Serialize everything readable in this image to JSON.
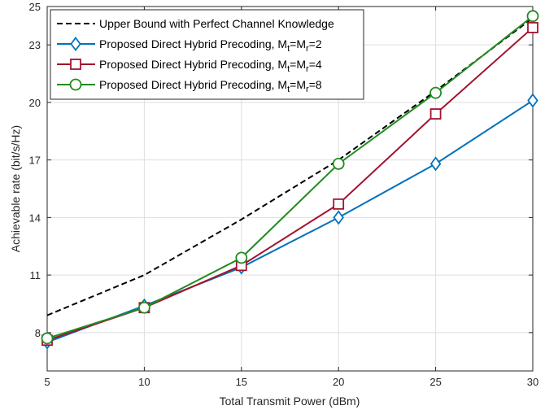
{
  "chart_data": {
    "type": "line",
    "xlabel": "Total Transmit Power (dBm)",
    "ylabel": "Achievable rate (bit/s/Hz)",
    "xlim": [
      5,
      30
    ],
    "ylim": [
      6,
      25
    ],
    "xticks": [
      5,
      10,
      15,
      20,
      25,
      30
    ],
    "yticks": [
      8,
      11,
      14,
      17,
      20,
      23,
      25
    ],
    "grid": true,
    "legend_position": "top-left",
    "x": [
      5,
      10,
      15,
      20,
      25,
      30
    ],
    "series": [
      {
        "name": "Upper Bound with Perfect Channel Knowledge",
        "values": [
          8.9,
          11.0,
          13.9,
          17.0,
          20.6,
          24.4
        ],
        "color": "#000000",
        "style": "dashed",
        "marker": "none"
      },
      {
        "name_main": "Proposed Direct Hybrid Precoding, M",
        "name_sub1": "t",
        "name_mid": "=M",
        "name_sub2": "r",
        "name_end": "=2",
        "values": [
          7.5,
          9.4,
          11.4,
          14.0,
          16.8,
          20.1
        ],
        "color": "#0072BD",
        "style": "solid",
        "marker": "diamond"
      },
      {
        "name_main": "Proposed Direct Hybrid Precoding, M",
        "name_sub1": "t",
        "name_mid": "=M",
        "name_sub2": "r",
        "name_end": "=4",
        "values": [
          7.6,
          9.3,
          11.5,
          14.7,
          19.4,
          23.9
        ],
        "color": "#A2142F",
        "style": "solid",
        "marker": "square"
      },
      {
        "name_main": "Proposed Direct Hybrid Precoding, M",
        "name_sub1": "t",
        "name_mid": "=M",
        "name_sub2": "r",
        "name_end": "=8",
        "values": [
          7.7,
          9.3,
          11.9,
          16.8,
          20.5,
          24.5
        ],
        "color": "#208C20",
        "style": "solid",
        "marker": "circle"
      }
    ]
  }
}
